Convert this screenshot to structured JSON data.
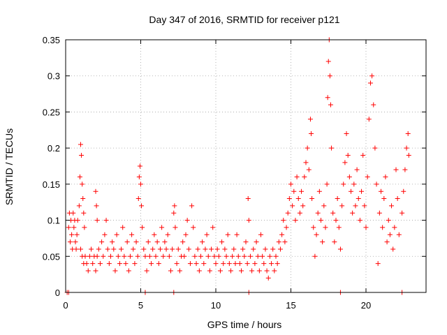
{
  "chart_data": {
    "type": "scatter",
    "title": "Day 347 of 2016, SRMTID for receiver p121",
    "xlabel": "GPS time / hours",
    "ylabel": "SRMTID / TECUs",
    "xlim": [
      0,
      24
    ],
    "ylim": [
      0,
      0.35
    ],
    "xticks": [
      0,
      5,
      10,
      15,
      20
    ],
    "xtick_labels": [
      "0",
      "5",
      "10",
      "15",
      "20"
    ],
    "yticks": [
      0,
      0.05,
      0.1,
      0.15,
      0.2,
      0.25,
      0.3,
      0.35
    ],
    "ytick_labels": [
      "0",
      "0.05",
      "0.1",
      "0.15",
      "0.2",
      "0.25",
      "0.3",
      "0.35"
    ],
    "grid": true,
    "marker": "+",
    "color": "#ff0000",
    "series": [
      {
        "name": "SRMTID",
        "points": [
          [
            0.1,
            0.0
          ],
          [
            0.2,
            0.0
          ],
          [
            5.3,
            0.0
          ],
          [
            7.2,
            0.0
          ],
          [
            12.2,
            0.0
          ],
          [
            18.3,
            0.0
          ],
          [
            22.4,
            0.0
          ],
          [
            0.2,
            0.09
          ],
          [
            0.25,
            0.11
          ],
          [
            0.3,
            0.07
          ],
          [
            0.35,
            0.1
          ],
          [
            0.4,
            0.08
          ],
          [
            0.45,
            0.06
          ],
          [
            0.5,
            0.11
          ],
          [
            0.55,
            0.09
          ],
          [
            0.6,
            0.1
          ],
          [
            0.65,
            0.07
          ],
          [
            0.7,
            0.06
          ],
          [
            0.75,
            0.08
          ],
          [
            0.8,
            0.1
          ],
          [
            0.9,
            0.12
          ],
          [
            0.95,
            0.16
          ],
          [
            1.0,
            0.205
          ],
          [
            1.05,
            0.19
          ],
          [
            1.1,
            0.15
          ],
          [
            1.15,
            0.13
          ],
          [
            1.2,
            0.11
          ],
          [
            1.25,
            0.09
          ],
          [
            1.0,
            0.06
          ],
          [
            1.1,
            0.05
          ],
          [
            1.2,
            0.04
          ],
          [
            1.3,
            0.05
          ],
          [
            1.4,
            0.04
          ],
          [
            1.5,
            0.03
          ],
          [
            1.6,
            0.05
          ],
          [
            1.7,
            0.06
          ],
          [
            1.8,
            0.04
          ],
          [
            1.9,
            0.05
          ],
          [
            2.0,
            0.03
          ],
          [
            2.1,
            0.05
          ],
          [
            2.0,
            0.14
          ],
          [
            2.05,
            0.12
          ],
          [
            2.1,
            0.1
          ],
          [
            2.2,
            0.06
          ],
          [
            2.3,
            0.04
          ],
          [
            2.4,
            0.07
          ],
          [
            2.5,
            0.05
          ],
          [
            2.6,
            0.08
          ],
          [
            2.7,
            0.1
          ],
          [
            2.8,
            0.06
          ],
          [
            2.9,
            0.04
          ],
          [
            3.0,
            0.05
          ],
          [
            3.1,
            0.07
          ],
          [
            3.2,
            0.06
          ],
          [
            3.3,
            0.03
          ],
          [
            3.4,
            0.08
          ],
          [
            3.5,
            0.05
          ],
          [
            3.6,
            0.04
          ],
          [
            3.7,
            0.06
          ],
          [
            3.8,
            0.09
          ],
          [
            3.9,
            0.05
          ],
          [
            4.0,
            0.04
          ],
          [
            4.1,
            0.07
          ],
          [
            4.2,
            0.03
          ],
          [
            4.3,
            0.05
          ],
          [
            4.4,
            0.08
          ],
          [
            4.5,
            0.06
          ],
          [
            4.6,
            0.04
          ],
          [
            4.7,
            0.07
          ],
          [
            4.8,
            0.05
          ],
          [
            4.85,
            0.13
          ],
          [
            4.9,
            0.16
          ],
          [
            4.95,
            0.175
          ],
          [
            5.0,
            0.15
          ],
          [
            5.05,
            0.12
          ],
          [
            5.1,
            0.09
          ],
          [
            5.2,
            0.06
          ],
          [
            5.3,
            0.05
          ],
          [
            5.4,
            0.03
          ],
          [
            5.5,
            0.07
          ],
          [
            5.6,
            0.05
          ],
          [
            5.7,
            0.04
          ],
          [
            5.8,
            0.06
          ],
          [
            5.9,
            0.08
          ],
          [
            6.0,
            0.05
          ],
          [
            6.1,
            0.07
          ],
          [
            6.2,
            0.04
          ],
          [
            6.3,
            0.06
          ],
          [
            6.4,
            0.09
          ],
          [
            6.5,
            0.05
          ],
          [
            6.6,
            0.07
          ],
          [
            6.7,
            0.06
          ],
          [
            6.8,
            0.08
          ],
          [
            6.9,
            0.05
          ],
          [
            7.0,
            0.03
          ],
          [
            7.1,
            0.06
          ],
          [
            7.2,
            0.11
          ],
          [
            7.25,
            0.12
          ],
          [
            7.3,
            0.09
          ],
          [
            7.4,
            0.04
          ],
          [
            7.5,
            0.06
          ],
          [
            7.6,
            0.03
          ],
          [
            7.7,
            0.05
          ],
          [
            7.8,
            0.07
          ],
          [
            7.9,
            0.05
          ],
          [
            8.0,
            0.08
          ],
          [
            8.1,
            0.1
          ],
          [
            8.2,
            0.06
          ],
          [
            8.3,
            0.04
          ],
          [
            8.4,
            0.12
          ],
          [
            8.5,
            0.09
          ],
          [
            8.6,
            0.05
          ],
          [
            8.7,
            0.04
          ],
          [
            8.8,
            0.06
          ],
          [
            8.9,
            0.03
          ],
          [
            9.0,
            0.05
          ],
          [
            9.1,
            0.07
          ],
          [
            9.2,
            0.04
          ],
          [
            9.3,
            0.06
          ],
          [
            9.4,
            0.08
          ],
          [
            9.5,
            0.05
          ],
          [
            9.6,
            0.03
          ],
          [
            9.7,
            0.06
          ],
          [
            9.8,
            0.09
          ],
          [
            9.9,
            0.05
          ],
          [
            10.0,
            0.04
          ],
          [
            10.1,
            0.06
          ],
          [
            10.2,
            0.05
          ],
          [
            10.3,
            0.03
          ],
          [
            10.4,
            0.07
          ],
          [
            10.5,
            0.04
          ],
          [
            10.6,
            0.06
          ],
          [
            10.7,
            0.05
          ],
          [
            10.8,
            0.08
          ],
          [
            10.9,
            0.04
          ],
          [
            11.0,
            0.03
          ],
          [
            11.1,
            0.05
          ],
          [
            11.2,
            0.06
          ],
          [
            11.3,
            0.04
          ],
          [
            11.4,
            0.08
          ],
          [
            11.5,
            0.05
          ],
          [
            11.6,
            0.04
          ],
          [
            11.7,
            0.03
          ],
          [
            11.8,
            0.06
          ],
          [
            11.9,
            0.05
          ],
          [
            12.0,
            0.07
          ],
          [
            12.1,
            0.04
          ],
          [
            12.15,
            0.13
          ],
          [
            12.2,
            0.1
          ],
          [
            12.3,
            0.05
          ],
          [
            12.4,
            0.03
          ],
          [
            12.5,
            0.06
          ],
          [
            12.6,
            0.04
          ],
          [
            12.7,
            0.07
          ],
          [
            12.8,
            0.05
          ],
          [
            12.9,
            0.03
          ],
          [
            13.0,
            0.08
          ],
          [
            13.1,
            0.05
          ],
          [
            13.2,
            0.04
          ],
          [
            13.3,
            0.06
          ],
          [
            13.4,
            0.03
          ],
          [
            13.5,
            0.02
          ],
          [
            13.6,
            0.05
          ],
          [
            13.7,
            0.04
          ],
          [
            13.8,
            0.06
          ],
          [
            13.9,
            0.03
          ],
          [
            14.0,
            0.05
          ],
          [
            14.1,
            0.04
          ],
          [
            14.2,
            0.07
          ],
          [
            14.3,
            0.06
          ],
          [
            14.4,
            0.08
          ],
          [
            14.5,
            0.1
          ],
          [
            14.6,
            0.07
          ],
          [
            14.7,
            0.09
          ],
          [
            14.8,
            0.11
          ],
          [
            14.9,
            0.13
          ],
          [
            15.0,
            0.15
          ],
          [
            15.1,
            0.12
          ],
          [
            15.2,
            0.14
          ],
          [
            15.3,
            0.1
          ],
          [
            15.4,
            0.16
          ],
          [
            15.5,
            0.13
          ],
          [
            15.6,
            0.11
          ],
          [
            15.7,
            0.14
          ],
          [
            15.8,
            0.12
          ],
          [
            15.9,
            0.16
          ],
          [
            16.0,
            0.18
          ],
          [
            16.1,
            0.2
          ],
          [
            16.2,
            0.17
          ],
          [
            16.3,
            0.24
          ],
          [
            16.35,
            0.22
          ],
          [
            16.4,
            0.13
          ],
          [
            16.5,
            0.09
          ],
          [
            16.6,
            0.05
          ],
          [
            16.7,
            0.08
          ],
          [
            16.8,
            0.11
          ],
          [
            16.9,
            0.14
          ],
          [
            17.0,
            0.1
          ],
          [
            17.1,
            0.07
          ],
          [
            17.2,
            0.12
          ],
          [
            17.3,
            0.09
          ],
          [
            17.4,
            0.15
          ],
          [
            17.45,
            0.27
          ],
          [
            17.5,
            0.32
          ],
          [
            17.55,
            0.35
          ],
          [
            17.6,
            0.3
          ],
          [
            17.65,
            0.26
          ],
          [
            17.7,
            0.2
          ],
          [
            17.8,
            0.11
          ],
          [
            17.9,
            0.07
          ],
          [
            18.0,
            0.1
          ],
          [
            18.1,
            0.13
          ],
          [
            18.2,
            0.09
          ],
          [
            18.3,
            0.06
          ],
          [
            18.4,
            0.12
          ],
          [
            18.5,
            0.15
          ],
          [
            18.6,
            0.18
          ],
          [
            18.7,
            0.22
          ],
          [
            18.8,
            0.19
          ],
          [
            18.9,
            0.16
          ],
          [
            19.0,
            0.14
          ],
          [
            19.1,
            0.11
          ],
          [
            19.2,
            0.15
          ],
          [
            19.3,
            0.12
          ],
          [
            19.4,
            0.17
          ],
          [
            19.5,
            0.13
          ],
          [
            19.6,
            0.1
          ],
          [
            19.7,
            0.14
          ],
          [
            19.8,
            0.19
          ],
          [
            19.9,
            0.12
          ],
          [
            20.0,
            0.09
          ],
          [
            20.1,
            0.16
          ],
          [
            20.2,
            0.24
          ],
          [
            20.3,
            0.29
          ],
          [
            20.4,
            0.3
          ],
          [
            20.5,
            0.26
          ],
          [
            20.6,
            0.2
          ],
          [
            20.7,
            0.15
          ],
          [
            20.8,
            0.04
          ],
          [
            20.9,
            0.11
          ],
          [
            21.0,
            0.14
          ],
          [
            21.1,
            0.09
          ],
          [
            21.2,
            0.13
          ],
          [
            21.3,
            0.16
          ],
          [
            21.4,
            0.07
          ],
          [
            21.5,
            0.1
          ],
          [
            21.6,
            0.08
          ],
          [
            21.7,
            0.12
          ],
          [
            21.8,
            0.06
          ],
          [
            21.9,
            0.09
          ],
          [
            22.0,
            0.17
          ],
          [
            22.1,
            0.13
          ],
          [
            22.2,
            0.08
          ],
          [
            22.4,
            0.11
          ],
          [
            22.5,
            0.14
          ],
          [
            22.6,
            0.17
          ],
          [
            22.7,
            0.2
          ],
          [
            22.8,
            0.22
          ],
          [
            22.85,
            0.19
          ]
        ]
      }
    ]
  }
}
